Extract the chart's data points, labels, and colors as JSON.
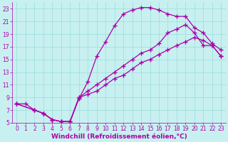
{
  "xlabel": "Windchill (Refroidissement éolien,°C)",
  "bg_color": "#c8f0f0",
  "line_color": "#aa00aa",
  "grid_color": "#99dddd",
  "xlim": [
    -0.5,
    23.5
  ],
  "ylim": [
    5,
    24
  ],
  "xticks": [
    0,
    1,
    2,
    3,
    4,
    5,
    6,
    7,
    8,
    9,
    10,
    11,
    12,
    13,
    14,
    15,
    16,
    17,
    18,
    19,
    20,
    21,
    22,
    23
  ],
  "yticks": [
    5,
    7,
    9,
    11,
    13,
    15,
    17,
    19,
    21,
    23
  ],
  "curve1_x": [
    0,
    1,
    2,
    3,
    4,
    5,
    6,
    7,
    8,
    9,
    10,
    11,
    12,
    13,
    14,
    15,
    16,
    17,
    18,
    19,
    20,
    21,
    22,
    23
  ],
  "curve1_y": [
    8,
    8,
    7,
    6.5,
    5.5,
    5.2,
    5.2,
    8.8,
    11.5,
    15.5,
    17.8,
    20.3,
    22.2,
    22.8,
    23.2,
    23.2,
    22.8,
    22.2,
    21.8,
    21.8,
    20,
    19.2,
    17.5,
    16.5
  ],
  "curve2_x": [
    0,
    2,
    3,
    4,
    5,
    6,
    7,
    8,
    9,
    10,
    11,
    12,
    13,
    14,
    15,
    16,
    17,
    18,
    19,
    20,
    21,
    22,
    23
  ],
  "curve2_y": [
    8,
    7,
    6.5,
    5.5,
    5.2,
    5.2,
    9,
    10,
    11,
    12,
    13,
    14,
    15,
    16,
    16.5,
    17.5,
    19.2,
    19.8,
    20.5,
    19.2,
    17.2,
    17.2,
    15.5
  ],
  "curve3_x": [
    0,
    2,
    3,
    4,
    5,
    6,
    7,
    8,
    9,
    10,
    11,
    12,
    13,
    14,
    15,
    16,
    17,
    18,
    19,
    20,
    21,
    22,
    23
  ],
  "curve3_y": [
    8,
    7,
    6.5,
    5.5,
    5.2,
    5.2,
    9,
    9.5,
    10,
    11,
    12,
    12.5,
    13.5,
    14.5,
    15,
    15.8,
    16.5,
    17.2,
    17.8,
    18.5,
    18,
    17.2,
    15.5
  ],
  "marker": "+",
  "markersize": 4,
  "markeredgewidth": 1.0,
  "linewidth": 0.9,
  "tick_fontsize": 5.5,
  "label_fontsize": 6.5
}
